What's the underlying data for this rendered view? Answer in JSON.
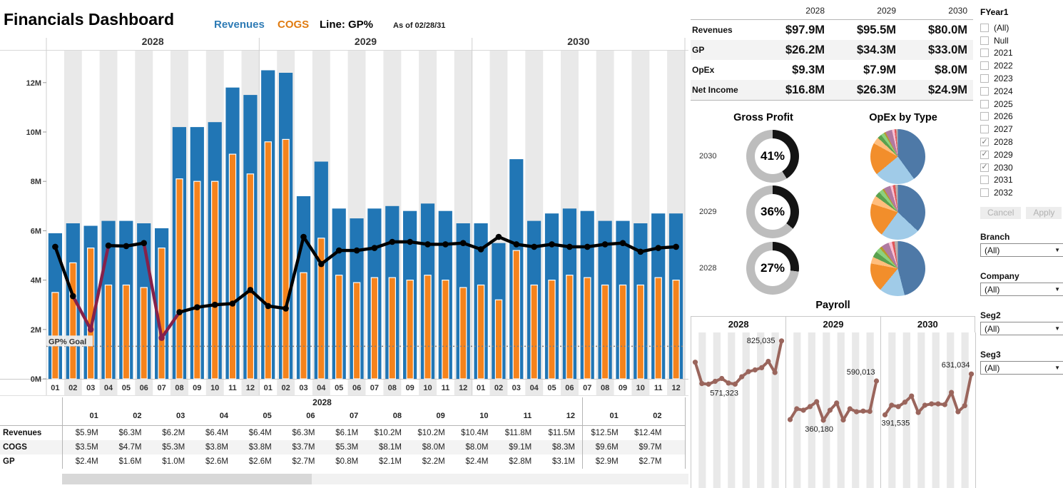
{
  "header": {
    "title": "Financials Dashboard",
    "legend_revenues": "Revenues",
    "legend_cogs": "COGS",
    "legend_line": "Line: GP%",
    "as_of": "As of 02/28/31"
  },
  "sections": {
    "gross_profit": "Gross Profit",
    "opex": "OpEx by Type",
    "payroll": "Payroll"
  },
  "colors": {
    "bar_blue": "#2176b5",
    "bar_orange": "#f5831c",
    "gp_line": "#000000",
    "gp_line_below_goal": "#86214a",
    "payroll_line": "#9a655c",
    "band": "#e9e9e9",
    "row_stripe": "#f3f3f3",
    "donut_fill": "#141414",
    "donut_rest": "#bdbdbd",
    "goal_line": "#7f7f7f",
    "legend_blue": "#2e7bb5",
    "legend_orange": "#e07b10"
  },
  "chart_data": [
    {
      "id": "revenues-cogs-gp",
      "type": "bar",
      "title": "Revenues and COGS by month with GP% line",
      "years": [
        "2028",
        "2029",
        "2030"
      ],
      "months": [
        "01",
        "02",
        "03",
        "04",
        "05",
        "06",
        "07",
        "08",
        "09",
        "10",
        "11",
        "12"
      ],
      "y_axis": {
        "tick_labels": [
          "0M",
          "2M",
          "4M",
          "6M",
          "8M",
          "10M",
          "12M"
        ],
        "tick_values": [
          0,
          2,
          4,
          6,
          8,
          10,
          12
        ],
        "ylim": [
          0,
          13.3
        ],
        "units": "millions USD"
      },
      "series": [
        {
          "name": "Revenues",
          "values": {
            "2028": [
              5.9,
              6.3,
              6.2,
              6.4,
              6.4,
              6.3,
              6.1,
              10.2,
              10.2,
              10.4,
              11.8,
              11.5
            ],
            "2029": [
              12.5,
              12.4,
              7.4,
              8.8,
              6.9,
              6.5,
              6.9,
              7.0,
              6.8,
              7.1,
              6.8,
              6.3
            ],
            "2030": [
              6.3,
              5.5,
              8.9,
              6.4,
              6.7,
              6.9,
              6.8,
              6.4,
              6.4,
              6.3,
              6.7,
              6.7
            ]
          }
        },
        {
          "name": "COGS",
          "values": {
            "2028": [
              3.5,
              4.7,
              5.3,
              3.8,
              3.8,
              3.7,
              5.3,
              8.1,
              8.0,
              8.0,
              9.1,
              8.3
            ],
            "2029": [
              9.6,
              9.7,
              4.3,
              5.7,
              4.2,
              3.9,
              4.1,
              4.1,
              4.0,
              4.2,
              4.0,
              3.7
            ],
            "2030": [
              3.8,
              3.2,
              5.2,
              3.8,
              4.0,
              4.2,
              4.1,
              3.8,
              3.8,
              3.8,
              4.1,
              4.0
            ]
          }
        },
        {
          "name": "GP% line (plotted against revenue axis)",
          "values": {
            "2028": [
              5.35,
              3.35,
              2.0,
              5.4,
              5.38,
              5.5,
              1.66,
              2.7,
              2.9,
              3.0,
              3.05,
              3.6
            ],
            "2029": [
              2.95,
              2.85,
              5.75,
              4.65,
              5.2,
              5.2,
              5.3,
              5.55,
              5.55,
              5.45,
              5.45,
              5.5
            ],
            "2030": [
              5.25,
              5.75,
              5.45,
              5.35,
              5.45,
              5.35,
              5.35,
              5.45,
              5.5,
              5.15,
              5.3,
              5.35
            ]
          }
        }
      ],
      "goal": {
        "label": "GP% Goal",
        "value_on_axis": 1.32,
        "below_goal_threshold": 2.2
      }
    },
    {
      "id": "summary-table",
      "type": "table",
      "columns": [
        "2028",
        "2029",
        "2030"
      ],
      "rows": [
        {
          "label": "Revenues",
          "values": [
            "$97.9M",
            "$95.5M",
            "$80.0M"
          ]
        },
        {
          "label": "GP",
          "values": [
            "$26.2M",
            "$34.3M",
            "$33.0M"
          ]
        },
        {
          "label": "OpEx",
          "values": [
            "$9.3M",
            "$7.9M",
            "$8.0M"
          ]
        },
        {
          "label": "Net Income",
          "values": [
            "$16.8M",
            "$26.3M",
            "$24.9M"
          ]
        }
      ]
    },
    {
      "id": "gross-profit-donuts",
      "type": "pie",
      "rows": [
        {
          "year": "2030",
          "pct": 41
        },
        {
          "year": "2029",
          "pct": 36
        },
        {
          "year": "2028",
          "pct": 27
        }
      ]
    },
    {
      "id": "opex-by-type-pies",
      "type": "pie",
      "palette": [
        "#4e79a7",
        "#a0cbe8",
        "#f28e2b",
        "#ffbe7d",
        "#59a14f",
        "#8cd17d",
        "#b6992d",
        "#b07aa1",
        "#fabfd2",
        "#e15759",
        "#bab0ac"
      ],
      "rows": [
        {
          "year": "2030",
          "values": [
            40,
            24,
            19,
            4,
            2.5,
            2,
            1,
            4,
            1.5,
            1,
            1
          ]
        },
        {
          "year": "2029",
          "values": [
            37,
            23,
            20,
            5,
            3,
            2.5,
            1,
            4,
            1.5,
            1.5,
            1.5
          ]
        },
        {
          "year": "2028",
          "values": [
            46,
            15,
            17,
            4,
            3.5,
            3,
            1.5,
            4.5,
            2,
            1.5,
            2
          ]
        }
      ]
    },
    {
      "id": "payroll",
      "type": "line",
      "panels": [
        {
          "year": "2028",
          "values": [
            700000,
            575000,
            571323,
            588000,
            605000,
            578000,
            572000,
            615000,
            645000,
            655000,
            668000,
            705000,
            640000,
            825035
          ],
          "annotations": [
            {
              "label": "825,035",
              "index": 13,
              "pos": "left"
            },
            {
              "label": "571,323",
              "index": 2,
              "pos": "below",
              "dx": 22
            }
          ]
        },
        {
          "year": "2029",
          "values": [
            364000,
            427000,
            419000,
            440000,
            469000,
            360180,
            419000,
            461000,
            362000,
            427000,
            410000,
            414000,
            412000,
            590013
          ],
          "annotations": [
            {
              "label": "590,013",
              "index": 13,
              "pos": "above"
            },
            {
              "label": "360,180",
              "index": 5,
              "pos": "below",
              "dx": -6
            }
          ]
        },
        {
          "year": "2030",
          "values": [
            391535,
            448000,
            440000,
            466000,
            502000,
            406000,
            448000,
            456000,
            456000,
            452000,
            523000,
            410000,
            445000,
            631034
          ],
          "annotations": [
            {
              "label": "631,034",
              "index": 13,
              "pos": "above"
            },
            {
              "label": "391,535",
              "index": 0,
              "pos": "start-below"
            }
          ]
        }
      ]
    }
  ],
  "bottom_table": {
    "year_header": "2028",
    "months": [
      "01",
      "02",
      "03",
      "04",
      "05",
      "06",
      "07",
      "08",
      "09",
      "10",
      "11",
      "12",
      "01",
      "02"
    ],
    "rows": [
      {
        "label": "Revenues",
        "values": [
          "$5.9M",
          "$6.3M",
          "$6.2M",
          "$6.4M",
          "$6.4M",
          "$6.3M",
          "$6.1M",
          "$10.2M",
          "$10.2M",
          "$10.4M",
          "$11.8M",
          "$11.5M",
          "$12.5M",
          "$12.4M"
        ]
      },
      {
        "label": "COGS",
        "values": [
          "$3.5M",
          "$4.7M",
          "$5.3M",
          "$3.8M",
          "$3.8M",
          "$3.7M",
          "$5.3M",
          "$8.1M",
          "$8.0M",
          "$8.0M",
          "$9.1M",
          "$8.3M",
          "$9.6M",
          "$9.7M"
        ]
      },
      {
        "label": "GP",
        "values": [
          "$2.4M",
          "$1.6M",
          "$1.0M",
          "$2.6M",
          "$2.6M",
          "$2.7M",
          "$0.8M",
          "$2.1M",
          "$2.2M",
          "$2.4M",
          "$2.8M",
          "$3.1M",
          "$2.9M",
          "$2.7M"
        ]
      }
    ]
  },
  "filters": {
    "fyear": {
      "label": "FYear1",
      "cancel": "Cancel",
      "apply": "Apply",
      "options": [
        {
          "label": "(All)",
          "checked": false
        },
        {
          "label": "Null",
          "checked": false
        },
        {
          "label": "2021",
          "checked": false
        },
        {
          "label": "2022",
          "checked": false
        },
        {
          "label": "2023",
          "checked": false
        },
        {
          "label": "2024",
          "checked": false
        },
        {
          "label": "2025",
          "checked": false
        },
        {
          "label": "2026",
          "checked": false
        },
        {
          "label": "2027",
          "checked": false
        },
        {
          "label": "2028",
          "checked": true
        },
        {
          "label": "2029",
          "checked": true
        },
        {
          "label": "2030",
          "checked": true
        },
        {
          "label": "2031",
          "checked": false
        },
        {
          "label": "2032",
          "checked": false
        }
      ]
    },
    "dropdowns": [
      {
        "label": "Branch",
        "value": "(All)"
      },
      {
        "label": "Company",
        "value": "(All)"
      },
      {
        "label": "Seg2",
        "value": "(All)"
      },
      {
        "label": "Seg3",
        "value": "(All)"
      }
    ]
  }
}
